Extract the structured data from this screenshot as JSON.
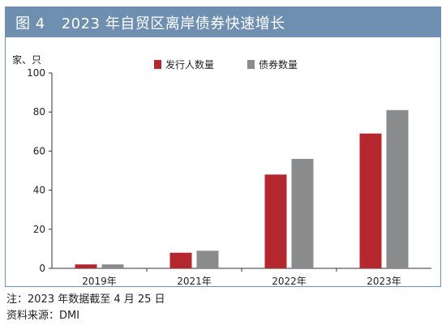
{
  "figure": {
    "label": "图 4",
    "title": "2023 年自贸区离岸债券快速增长"
  },
  "notes": {
    "note": "注：2023 年数据截至 4 月 25 日",
    "source": "资料来源：DMI"
  },
  "chart_data": {
    "type": "bar",
    "title": "2023 年自贸区离岸债券快速增长",
    "ylabel": "家、只",
    "xlabel": "",
    "categories": [
      "2019年",
      "2021年",
      "2022年",
      "2023年"
    ],
    "series": [
      {
        "name": "发行人数量",
        "color": "#b5272f",
        "values": [
          2,
          8,
          48,
          69
        ]
      },
      {
        "name": "债券数量",
        "color": "#8a8b8d",
        "values": [
          2,
          9,
          56,
          81
        ]
      }
    ],
    "ylim": [
      0,
      100
    ],
    "yticks": [
      0,
      20,
      40,
      60,
      80,
      100
    ],
    "grid": false,
    "legend_position": "top-center"
  }
}
